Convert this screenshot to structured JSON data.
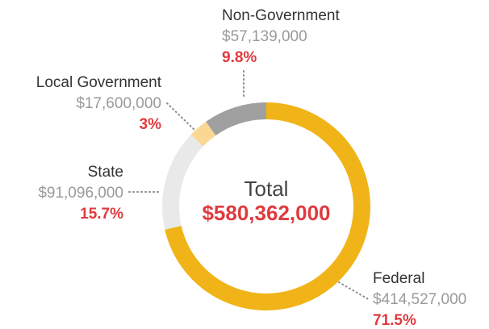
{
  "chart_data": {
    "type": "donut",
    "categories": [
      "Federal",
      "State",
      "Local Government",
      "Non-Government"
    ],
    "values": [
      414527000,
      91096000,
      17600000,
      57139000
    ],
    "value_labels": [
      "$414,527,000",
      "$91,096,000",
      "$17,600,000",
      "$57,139,000"
    ],
    "shares": [
      71.5,
      15.7,
      3,
      9.8
    ],
    "share_labels": [
      "71.5%",
      "15.7%",
      "3%",
      "9.8%"
    ],
    "colors": [
      "#f0b418",
      "#e9e9e9",
      "#fad894",
      "#a0a0a0"
    ],
    "center_label": "Total",
    "total": 580362000,
    "total_label": "$580,362,000"
  }
}
